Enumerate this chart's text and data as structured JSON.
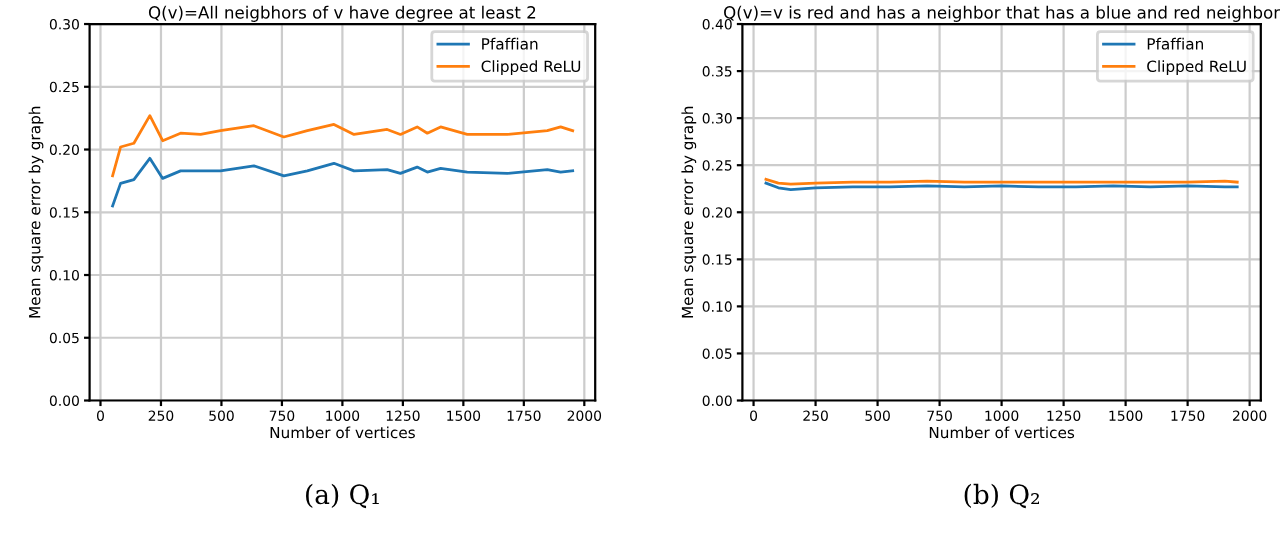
{
  "chart_data": [
    {
      "type": "line",
      "title": "Q(v)=All neigbhors of v have degree at least 2",
      "xlabel": "Number of vertices",
      "ylabel": "Mean square error by graph",
      "annotations": [
        "(a) Q₁"
      ],
      "legend": "top right",
      "grid": true,
      "xlim": [
        -45,
        2045
      ],
      "xticks": [
        0,
        250,
        500,
        750,
        1000,
        1250,
        1500,
        1750,
        2000
      ],
      "ylim": [
        0,
        0.3
      ],
      "yticks": [
        {
          "value": 0,
          "label": "0.00"
        },
        0.05,
        {
          "value": 0.1,
          "label": "0.10"
        },
        0.15,
        {
          "value": 0.2,
          "label": "0.20"
        },
        0.25,
        {
          "value": 0.3,
          "label": "0.30"
        }
      ],
      "series": [
        {
          "name": "Pfaffian",
          "color": "#1f77b4",
          "x": [
            50,
            83,
            138,
            204,
            257,
            331,
            496,
            634,
            758,
            855,
            965,
            1048,
            1185,
            1240,
            1309,
            1351,
            1406,
            1516,
            1682,
            1847,
            1902,
            1952
          ],
          "values": [
            0.155,
            0.173,
            0.176,
            0.193,
            0.177,
            0.183,
            0.183,
            0.187,
            0.179,
            0.183,
            0.189,
            0.183,
            0.184,
            0.181,
            0.186,
            0.182,
            0.185,
            0.182,
            0.181,
            0.184,
            0.182,
            0.183
          ]
        },
        {
          "name": "Clipped ReLU",
          "color": "#ff7f0e",
          "x": [
            50,
            83,
            138,
            204,
            257,
            331,
            414,
            496,
            634,
            758,
            855,
            965,
            1048,
            1185,
            1240,
            1309,
            1351,
            1406,
            1516,
            1682,
            1847,
            1902,
            1952
          ],
          "values": [
            0.179,
            0.202,
            0.205,
            0.227,
            0.207,
            0.213,
            0.212,
            0.215,
            0.219,
            0.21,
            0.215,
            0.22,
            0.212,
            0.216,
            0.212,
            0.218,
            0.213,
            0.218,
            0.212,
            0.212,
            0.215,
            0.218,
            0.215
          ]
        }
      ]
    },
    {
      "type": "line",
      "title": "Q(v)=v is red and has a neighbor that has a blue and red neighbor",
      "xlabel": "Number of vertices",
      "ylabel": "Mean square error by graph",
      "annotations": [
        "(b) Q₂"
      ],
      "legend": "top right",
      "grid": true,
      "xlim": [
        -45,
        2045
      ],
      "xticks": [
        0,
        250,
        500,
        750,
        1000,
        1250,
        1500,
        1750,
        2000
      ],
      "ylim": [
        0,
        0.4
      ],
      "yticks": [
        {
          "value": 0,
          "label": "0.00"
        },
        0.05,
        {
          "value": 0.1,
          "label": "0.10"
        },
        0.15,
        {
          "value": 0.2,
          "label": "0.20"
        },
        0.25,
        {
          "value": 0.3,
          "label": "0.30"
        },
        0.35,
        {
          "value": 0.4,
          "label": "0.40"
        }
      ],
      "series": [
        {
          "name": "Pfaffian",
          "color": "#1f77b4",
          "x": [
            50,
            100,
            150,
            250,
            400,
            550,
            700,
            850,
            1000,
            1150,
            1300,
            1450,
            1600,
            1750,
            1900,
            1950
          ],
          "values": [
            0.231,
            0.226,
            0.224,
            0.226,
            0.227,
            0.227,
            0.228,
            0.227,
            0.228,
            0.227,
            0.227,
            0.228,
            0.227,
            0.228,
            0.227,
            0.227
          ]
        },
        {
          "name": "Clipped ReLU",
          "color": "#ff7f0e",
          "x": [
            50,
            100,
            150,
            250,
            400,
            550,
            700,
            850,
            1000,
            1150,
            1300,
            1450,
            1600,
            1750,
            1900,
            1950
          ],
          "values": [
            0.235,
            0.231,
            0.23,
            0.231,
            0.232,
            0.232,
            0.233,
            0.232,
            0.232,
            0.232,
            0.232,
            0.232,
            0.232,
            0.232,
            0.233,
            0.232
          ]
        }
      ]
    }
  ]
}
